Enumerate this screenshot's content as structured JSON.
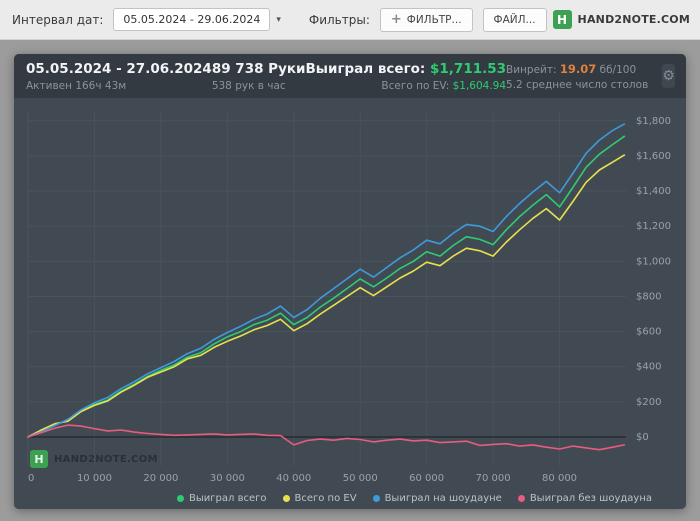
{
  "icons": {
    "gear": "⚙",
    "caret": "▾",
    "plus": "+"
  },
  "brand": {
    "letter": "H",
    "name": "HAND2NOTE.COM"
  },
  "toolbar": {
    "interval_label": "Интервал дат:",
    "date_range_value": "05.05.2024 - 29.06.2024",
    "filters_label": "Фильтры:",
    "filter_button_label": "ФИЛЬТР...",
    "file_button_label": "ФАЙЛ..."
  },
  "panel": {
    "header": {
      "date_range": "05.05.2024 - 27.06.2024",
      "active_time": "Активен 166ч 43м",
      "hands": "89 738 Руки",
      "hands_per_hour": "538 рук в час",
      "won_total_label": "Выиграл всего:",
      "won_total_value": "$1,711.53",
      "ev_total_label": "Всего по EV:",
      "ev_total_value": "$1,604.94",
      "winrate_label": "Винрейт:",
      "winrate_value": "19.07",
      "winrate_units": "бб/100",
      "avg_tables": "5.2 среднее число столов"
    }
  },
  "chart_data": {
    "type": "line",
    "title": "",
    "xlabel": "",
    "ylabel": "",
    "grid": true,
    "zero_line": true,
    "legend_position": "bottom-right",
    "xlim": [
      0,
      90000
    ],
    "ylim": [
      -165,
      1850
    ],
    "xticks": [
      0,
      10000,
      20000,
      30000,
      40000,
      50000,
      60000,
      70000,
      80000
    ],
    "xtick_labels": [
      "0",
      "10 000",
      "20 000",
      "30 000",
      "40 000",
      "50 000",
      "60 000",
      "70 000",
      "80 000"
    ],
    "yticks": [
      0,
      200,
      400,
      600,
      800,
      1000,
      1200,
      1400,
      1600,
      1800
    ],
    "ytick_labels": [
      "$0",
      "$200",
      "$400",
      "$600",
      "$800",
      "$1,000",
      "$1,200",
      "$1,400",
      "$1,600",
      "$1,800"
    ],
    "x": [
      0,
      2000,
      4000,
      6000,
      8000,
      10000,
      12000,
      14000,
      16000,
      18000,
      20000,
      22000,
      24000,
      26000,
      28000,
      30000,
      32000,
      34000,
      36000,
      38000,
      40000,
      42000,
      44000,
      46000,
      48000,
      50000,
      52000,
      54000,
      56000,
      58000,
      60000,
      62000,
      64000,
      66000,
      68000,
      70000,
      72000,
      74000,
      76000,
      78000,
      80000,
      82000,
      84000,
      86000,
      88000,
      89738
    ],
    "series": [
      {
        "name": "Выиграл всего",
        "color": "#2ecc71",
        "values": [
          0,
          35,
          70,
          95,
          150,
          185,
          210,
          260,
          300,
          345,
          380,
          410,
          455,
          480,
          530,
          570,
          600,
          640,
          665,
          705,
          640,
          680,
          740,
          790,
          845,
          900,
          855,
          905,
          960,
          1000,
          1055,
          1030,
          1090,
          1140,
          1125,
          1095,
          1180,
          1255,
          1320,
          1380,
          1310,
          1420,
          1535,
          1610,
          1665,
          1711.53
        ]
      },
      {
        "name": "Всего по EV",
        "color": "#e8e14d",
        "values": [
          0,
          40,
          75,
          90,
          145,
          180,
          205,
          255,
          295,
          340,
          370,
          400,
          445,
          465,
          510,
          545,
          575,
          610,
          635,
          670,
          605,
          645,
          700,
          750,
          800,
          850,
          805,
          855,
          905,
          945,
          995,
          975,
          1030,
          1075,
          1060,
          1030,
          1110,
          1180,
          1245,
          1300,
          1235,
          1340,
          1450,
          1520,
          1565,
          1604.94
        ]
      },
      {
        "name": "Выиграл на шоудауне",
        "color": "#3d9bdc",
        "values": [
          0,
          30,
          65,
          100,
          155,
          195,
          225,
          275,
          315,
          360,
          395,
          430,
          475,
          505,
          555,
          595,
          630,
          670,
          700,
          745,
          680,
          725,
          790,
          845,
          900,
          955,
          910,
          965,
          1020,
          1065,
          1120,
          1100,
          1160,
          1210,
          1200,
          1170,
          1255,
          1330,
          1395,
          1455,
          1390,
          1500,
          1615,
          1690,
          1745,
          1781
        ]
      },
      {
        "name": "Выиграл без шоудауна",
        "color": "#e85c7d",
        "values": [
          0,
          25,
          50,
          68,
          62,
          48,
          35,
          40,
          28,
          20,
          15,
          10,
          12,
          15,
          18,
          12,
          15,
          18,
          10,
          8,
          -45,
          -20,
          -12,
          -18,
          -8,
          -14,
          -28,
          -18,
          -12,
          -22,
          -18,
          -32,
          -28,
          -24,
          -48,
          -42,
          -38,
          -52,
          -45,
          -58,
          -68,
          -52,
          -62,
          -72,
          -58,
          -45
        ]
      }
    ]
  }
}
